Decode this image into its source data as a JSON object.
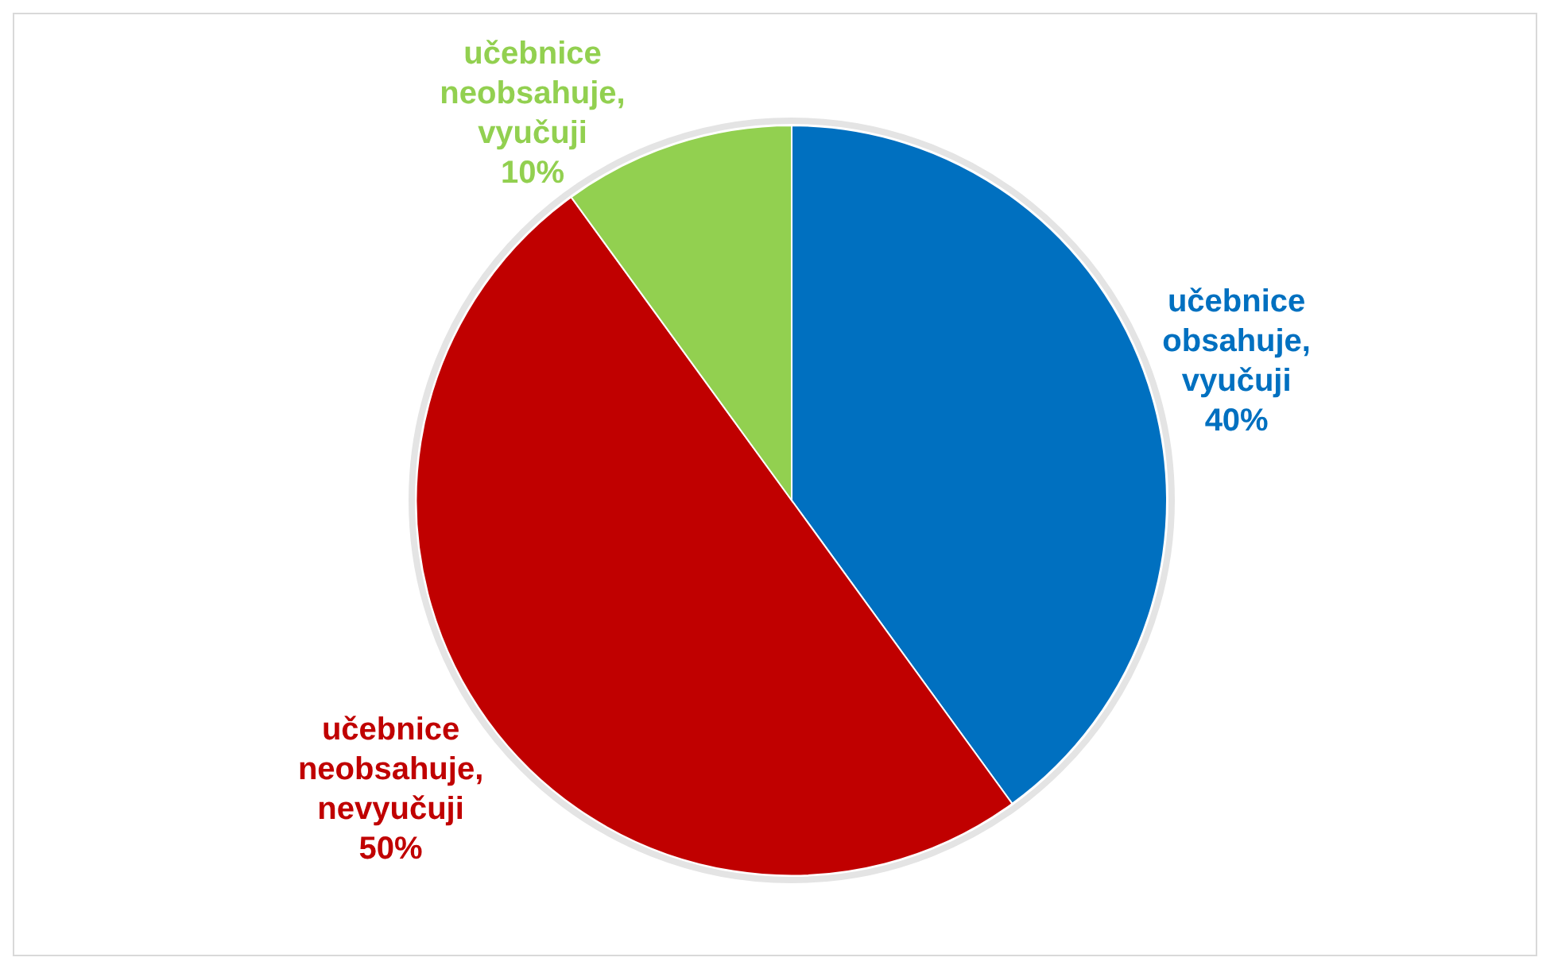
{
  "chart_data": {
    "type": "pie",
    "categories": [
      "učebnice obsahuje, vyučuji",
      "učebnice neobsahuje, nevyučuji",
      "učebnice neobsahuje, vyučuji"
    ],
    "values": [
      40,
      50,
      10
    ],
    "colors": [
      "#0070c0",
      "#c00000",
      "#92d050"
    ],
    "value_labels": [
      "40%",
      "50%",
      "10%"
    ]
  }
}
